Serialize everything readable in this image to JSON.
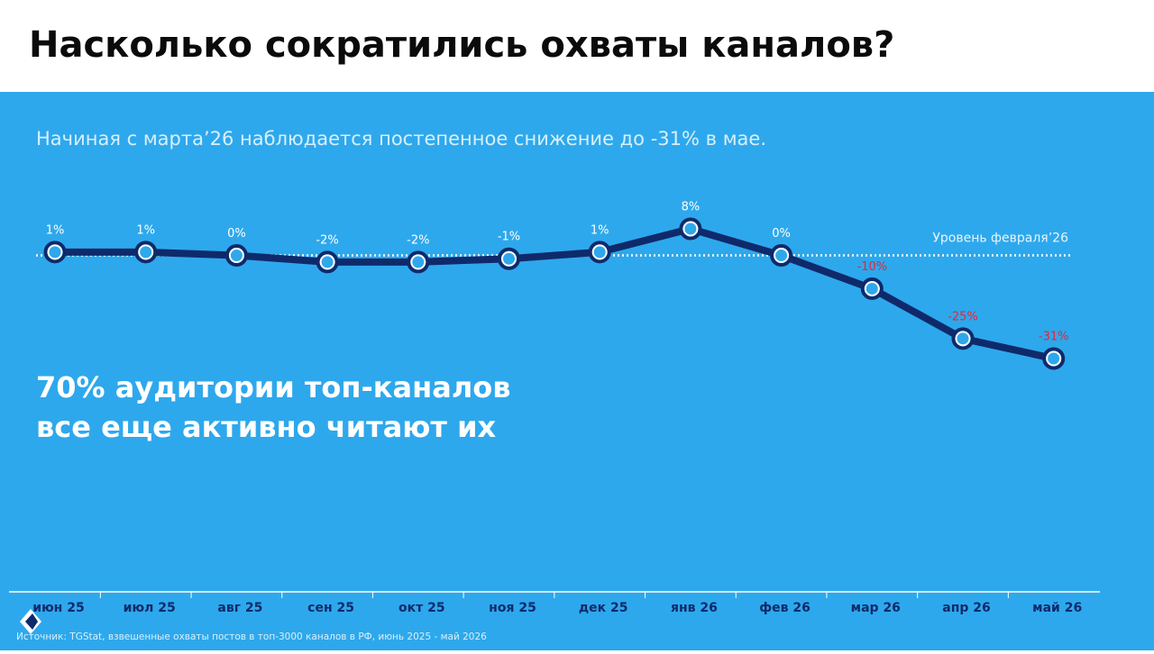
{
  "chart_data": {
    "type": "line",
    "title": "Насколько сократились охваты каналов?",
    "subtitle": "Начиная с марта’26 наблюдается постепенное снижение до -31% в мае.",
    "annotation": [
      "70% аудитории топ-каналов",
      "все еще активно читают их"
    ],
    "source": "Источник: TGStat, взвешенные охваты постов в топ-3000 каналов в РФ, июнь 2025 - май 2026",
    "categories": [
      "июн 25",
      "июл 25",
      "авг 25",
      "сен 25",
      "окт 25",
      "ноя 25",
      "дек 25",
      "янв 26",
      "фев 26",
      "мар 26",
      "апр 26",
      "май 26"
    ],
    "values": [
      1,
      1,
      0,
      -2,
      -2,
      -1,
      1,
      8,
      0,
      -10,
      -25,
      -31
    ],
    "value_labels": [
      "1%",
      "1%",
      "0%",
      "-2%",
      "-2%",
      "-1%",
      "1%",
      "8%",
      "0%",
      "-10%",
      "-25%",
      "-31%"
    ],
    "label_colors": [
      "#ffffff",
      "#ffffff",
      "#ffffff",
      "#ffffff",
      "#ffffff",
      "#ffffff",
      "#ffffff",
      "#ffffff",
      "#ffffff",
      "#e8243c",
      "#e8243c",
      "#e8243c"
    ],
    "color": "#0f2a6b",
    "reference_line": {
      "value": 0,
      "label": "Уровень февраля’26"
    }
  }
}
